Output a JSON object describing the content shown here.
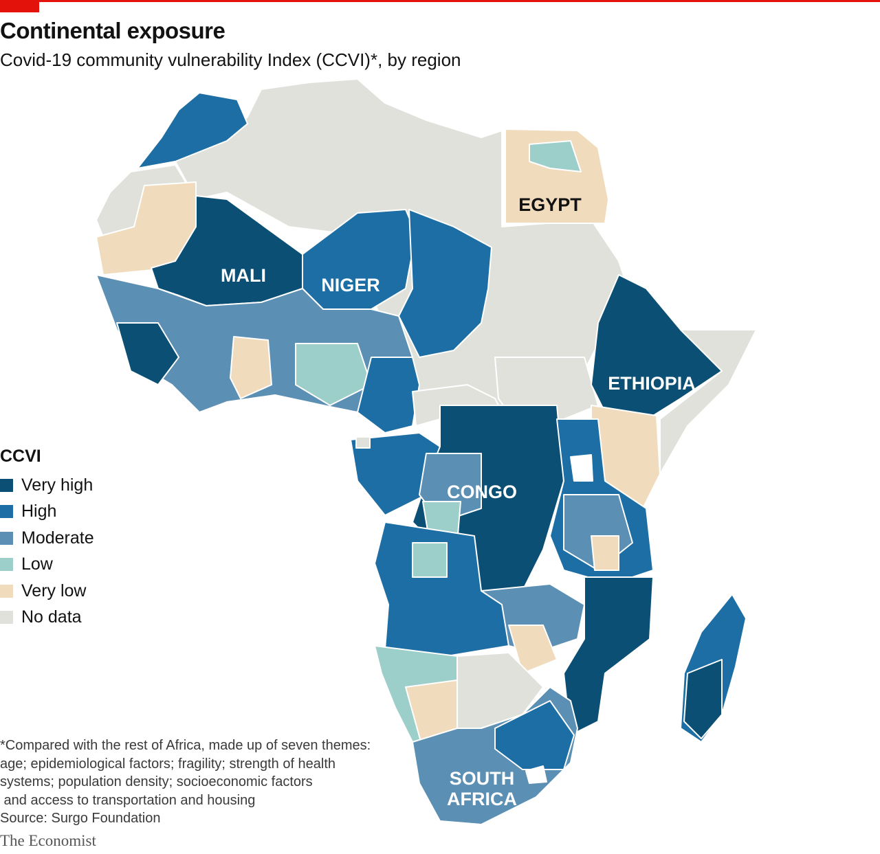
{
  "header": {
    "title": "Continental exposure",
    "subtitle": "Covid-19 community vulnerability Index (CCVI)*, by region"
  },
  "colors": {
    "accent_red": "#e3120b",
    "very_high": "#0b4f74",
    "high": "#1c6ea4",
    "moderate": "#5b8fb3",
    "low": "#9ccfc9",
    "very_low": "#f0dcbd",
    "no_data": "#e1e1dc"
  },
  "map": {
    "labels": {
      "mali": "MALI",
      "niger": "NIGER",
      "egypt": "EGYPT",
      "ethiopia": "ETHIOPIA",
      "congo": "CONGO",
      "south_africa_1": "SOUTH",
      "south_africa_2": "AFRICA"
    }
  },
  "legend": {
    "title": "CCVI",
    "items": [
      {
        "label": "Very high",
        "color": "#0b4f74"
      },
      {
        "label": "High",
        "color": "#1c6ea4"
      },
      {
        "label": "Moderate",
        "color": "#5b8fb3"
      },
      {
        "label": "Low",
        "color": "#9ccfc9"
      },
      {
        "label": "Very low",
        "color": "#f0dcbd"
      },
      {
        "label": "No data",
        "color": "#e1e1dc"
      }
    ]
  },
  "footnote": {
    "lines": [
      "*Compared with the rest of Africa, made up of seven themes:",
      "age; epidemiological factors; fragility; strength of health",
      "systems; population density; socioeconomic factors",
      " and access to transportation and housing"
    ],
    "source": "Source: Surgo Foundation"
  },
  "brand": "The Economist"
}
